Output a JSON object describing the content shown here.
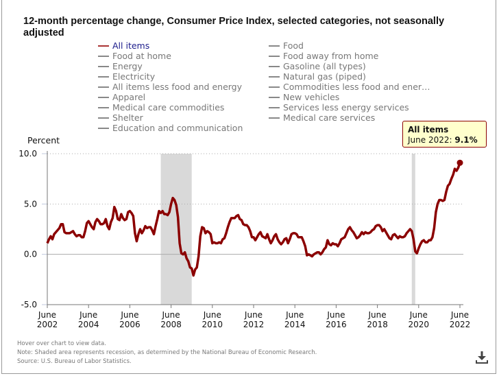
{
  "title": "12-month percentage change, Consumer Price Index, selected categories, not seasonally adjusted",
  "legend": [
    {
      "label": "All items",
      "active": true
    },
    {
      "label": "Food"
    },
    {
      "label": "Food at home"
    },
    {
      "label": "Food away from home"
    },
    {
      "label": "Energy"
    },
    {
      "label": "Gasoline (all types)"
    },
    {
      "label": "Electricity"
    },
    {
      "label": "Natural gas (piped)"
    },
    {
      "label": "All items less food and energy"
    },
    {
      "label": "Commodities less food and ener…"
    },
    {
      "label": "Apparel"
    },
    {
      "label": "New vehicles"
    },
    {
      "label": "Medical care commodities"
    },
    {
      "label": "Services less energy services"
    },
    {
      "label": "Shelter"
    },
    {
      "label": "Medical care services"
    },
    {
      "label": "Education and communication"
    }
  ],
  "tooltip": {
    "series": "All items",
    "date_label": "June 2022: ",
    "value_label": "9.1%"
  },
  "notes": [
    "Hover over chart to view data.",
    "Note: Shaded area represents recession, as determined by the National Bureau of Economic Research.",
    "Source: U.S. Bureau of Labor Statistics."
  ],
  "download_icon": "download-icon",
  "colors": {
    "series": "#8b0000",
    "recession": "#d9d9d9",
    "tooltip_bg": "#ffffcc"
  },
  "chart_data": {
    "type": "line",
    "ylabel": "Percent",
    "ylim": [
      -5,
      10
    ],
    "yticks": [
      -5,
      0,
      5,
      10
    ],
    "ytick_labels": [
      "-5.0",
      "0.0",
      "5.0",
      "10.0"
    ],
    "xlim": [
      "2002-06",
      "2022-06"
    ],
    "xticks": [
      {
        "month": "June",
        "year": "2002",
        "x": "2002-06"
      },
      {
        "month": "June",
        "year": "2004",
        "x": "2004-06"
      },
      {
        "month": "June",
        "year": "2006",
        "x": "2006-06"
      },
      {
        "month": "June",
        "year": "2008",
        "x": "2008-06"
      },
      {
        "month": "June",
        "year": "2010",
        "x": "2010-06"
      },
      {
        "month": "June",
        "year": "2012",
        "x": "2012-06"
      },
      {
        "month": "June",
        "year": "2014",
        "x": "2014-06"
      },
      {
        "month": "June",
        "year": "2016",
        "x": "2016-06"
      },
      {
        "month": "June",
        "year": "2018",
        "x": "2018-06"
      },
      {
        "month": "June",
        "year": "2020",
        "x": "2020-06"
      },
      {
        "month": "June",
        "year": "2022",
        "x": "2022-06"
      }
    ],
    "grid": "horizontal dotted",
    "recessions": [
      [
        "2007-12",
        "2009-06"
      ],
      [
        "2020-02",
        "2020-04"
      ]
    ],
    "series": [
      {
        "name": "All items",
        "points": [
          [
            "2002-06",
            1.1
          ],
          [
            "2002-07",
            1.5
          ],
          [
            "2002-08",
            1.8
          ],
          [
            "2002-09",
            1.5
          ],
          [
            "2002-10",
            2.0
          ],
          [
            "2002-11",
            2.2
          ],
          [
            "2002-12",
            2.4
          ],
          [
            "2003-01",
            2.6
          ],
          [
            "2003-02",
            3.0
          ],
          [
            "2003-03",
            3.0
          ],
          [
            "2003-04",
            2.2
          ],
          [
            "2003-05",
            2.1
          ],
          [
            "2003-06",
            2.1
          ],
          [
            "2003-07",
            2.1
          ],
          [
            "2003-08",
            2.2
          ],
          [
            "2003-09",
            2.3
          ],
          [
            "2003-10",
            2.0
          ],
          [
            "2003-11",
            1.8
          ],
          [
            "2003-12",
            1.9
          ],
          [
            "2004-01",
            1.9
          ],
          [
            "2004-02",
            1.7
          ],
          [
            "2004-03",
            1.7
          ],
          [
            "2004-04",
            2.3
          ],
          [
            "2004-05",
            3.1
          ],
          [
            "2004-06",
            3.3
          ],
          [
            "2004-07",
            3.0
          ],
          [
            "2004-08",
            2.7
          ],
          [
            "2004-09",
            2.5
          ],
          [
            "2004-10",
            3.2
          ],
          [
            "2004-11",
            3.5
          ],
          [
            "2004-12",
            3.3
          ],
          [
            "2005-01",
            3.0
          ],
          [
            "2005-02",
            3.0
          ],
          [
            "2005-03",
            3.1
          ],
          [
            "2005-04",
            3.5
          ],
          [
            "2005-05",
            2.8
          ],
          [
            "2005-06",
            2.5
          ],
          [
            "2005-07",
            3.2
          ],
          [
            "2005-08",
            3.6
          ],
          [
            "2005-09",
            4.7
          ],
          [
            "2005-10",
            4.3
          ],
          [
            "2005-11",
            3.5
          ],
          [
            "2005-12",
            3.4
          ],
          [
            "2006-01",
            4.0
          ],
          [
            "2006-02",
            3.6
          ],
          [
            "2006-03",
            3.4
          ],
          [
            "2006-04",
            3.5
          ],
          [
            "2006-05",
            4.2
          ],
          [
            "2006-06",
            4.3
          ],
          [
            "2006-07",
            4.1
          ],
          [
            "2006-08",
            3.8
          ],
          [
            "2006-09",
            2.1
          ],
          [
            "2006-10",
            1.3
          ],
          [
            "2006-11",
            2.0
          ],
          [
            "2006-12",
            2.5
          ],
          [
            "2007-01",
            2.1
          ],
          [
            "2007-02",
            2.4
          ],
          [
            "2007-03",
            2.8
          ],
          [
            "2007-04",
            2.6
          ],
          [
            "2007-05",
            2.7
          ],
          [
            "2007-06",
            2.7
          ],
          [
            "2007-07",
            2.4
          ],
          [
            "2007-08",
            2.0
          ],
          [
            "2007-09",
            2.8
          ],
          [
            "2007-10",
            3.5
          ],
          [
            "2007-11",
            4.3
          ],
          [
            "2007-12",
            4.1
          ],
          [
            "2008-01",
            4.3
          ],
          [
            "2008-02",
            4.0
          ],
          [
            "2008-03",
            4.0
          ],
          [
            "2008-04",
            3.9
          ],
          [
            "2008-05",
            4.2
          ],
          [
            "2008-06",
            5.0
          ],
          [
            "2008-07",
            5.6
          ],
          [
            "2008-08",
            5.4
          ],
          [
            "2008-09",
            4.9
          ],
          [
            "2008-10",
            3.7
          ],
          [
            "2008-11",
            1.1
          ],
          [
            "2008-12",
            0.1
          ],
          [
            "2009-01",
            0.0
          ],
          [
            "2009-02",
            0.2
          ],
          [
            "2009-03",
            -0.4
          ],
          [
            "2009-04",
            -0.7
          ],
          [
            "2009-05",
            -1.3
          ],
          [
            "2009-06",
            -1.4
          ],
          [
            "2009-07",
            -2.1
          ],
          [
            "2009-08",
            -1.5
          ],
          [
            "2009-09",
            -1.3
          ],
          [
            "2009-10",
            -0.2
          ],
          [
            "2009-11",
            1.8
          ],
          [
            "2009-12",
            2.7
          ],
          [
            "2010-01",
            2.6
          ],
          [
            "2010-02",
            2.1
          ],
          [
            "2010-03",
            2.3
          ],
          [
            "2010-04",
            2.2
          ],
          [
            "2010-05",
            2.0
          ],
          [
            "2010-06",
            1.1
          ],
          [
            "2010-07",
            1.2
          ],
          [
            "2010-08",
            1.1
          ],
          [
            "2010-09",
            1.1
          ],
          [
            "2010-10",
            1.2
          ],
          [
            "2010-11",
            1.1
          ],
          [
            "2010-12",
            1.5
          ],
          [
            "2011-01",
            1.6
          ],
          [
            "2011-02",
            2.1
          ],
          [
            "2011-03",
            2.7
          ],
          [
            "2011-04",
            3.2
          ],
          [
            "2011-05",
            3.6
          ],
          [
            "2011-06",
            3.6
          ],
          [
            "2011-07",
            3.6
          ],
          [
            "2011-08",
            3.8
          ],
          [
            "2011-09",
            3.9
          ],
          [
            "2011-10",
            3.5
          ],
          [
            "2011-11",
            3.4
          ],
          [
            "2011-12",
            3.0
          ],
          [
            "2012-01",
            2.9
          ],
          [
            "2012-02",
            2.9
          ],
          [
            "2012-03",
            2.7
          ],
          [
            "2012-04",
            2.3
          ],
          [
            "2012-05",
            1.7
          ],
          [
            "2012-06",
            1.7
          ],
          [
            "2012-07",
            1.4
          ],
          [
            "2012-08",
            1.7
          ],
          [
            "2012-09",
            2.0
          ],
          [
            "2012-10",
            2.2
          ],
          [
            "2012-11",
            1.8
          ],
          [
            "2012-12",
            1.7
          ],
          [
            "2013-01",
            1.6
          ],
          [
            "2013-02",
            2.0
          ],
          [
            "2013-03",
            1.5
          ],
          [
            "2013-04",
            1.1
          ],
          [
            "2013-05",
            1.4
          ],
          [
            "2013-06",
            1.8
          ],
          [
            "2013-07",
            2.0
          ],
          [
            "2013-08",
            1.5
          ],
          [
            "2013-09",
            1.2
          ],
          [
            "2013-10",
            1.0
          ],
          [
            "2013-11",
            1.2
          ],
          [
            "2013-12",
            1.5
          ],
          [
            "2014-01",
            1.6
          ],
          [
            "2014-02",
            1.1
          ],
          [
            "2014-03",
            1.5
          ],
          [
            "2014-04",
            2.0
          ],
          [
            "2014-05",
            2.1
          ],
          [
            "2014-06",
            2.1
          ],
          [
            "2014-07",
            2.0
          ],
          [
            "2014-08",
            1.7
          ],
          [
            "2014-09",
            1.7
          ],
          [
            "2014-10",
            1.7
          ],
          [
            "2014-11",
            1.3
          ],
          [
            "2014-12",
            0.8
          ],
          [
            "2015-01",
            -0.1
          ],
          [
            "2015-02",
            0.0
          ],
          [
            "2015-03",
            -0.1
          ],
          [
            "2015-04",
            -0.2
          ],
          [
            "2015-05",
            0.0
          ],
          [
            "2015-06",
            0.1
          ],
          [
            "2015-07",
            0.2
          ],
          [
            "2015-08",
            0.2
          ],
          [
            "2015-09",
            0.0
          ],
          [
            "2015-10",
            0.2
          ],
          [
            "2015-11",
            0.5
          ],
          [
            "2015-12",
            0.7
          ],
          [
            "2016-01",
            1.4
          ],
          [
            "2016-02",
            1.0
          ],
          [
            "2016-03",
            0.9
          ],
          [
            "2016-04",
            1.1
          ],
          [
            "2016-05",
            1.0
          ],
          [
            "2016-06",
            1.0
          ],
          [
            "2016-07",
            0.8
          ],
          [
            "2016-08",
            1.1
          ],
          [
            "2016-09",
            1.5
          ],
          [
            "2016-10",
            1.6
          ],
          [
            "2016-11",
            1.7
          ],
          [
            "2016-12",
            2.1
          ],
          [
            "2017-01",
            2.5
          ],
          [
            "2017-02",
            2.7
          ],
          [
            "2017-03",
            2.4
          ],
          [
            "2017-04",
            2.2
          ],
          [
            "2017-05",
            1.9
          ],
          [
            "2017-06",
            1.6
          ],
          [
            "2017-07",
            1.7
          ],
          [
            "2017-08",
            1.9
          ],
          [
            "2017-09",
            2.2
          ],
          [
            "2017-10",
            2.0
          ],
          [
            "2017-11",
            2.2
          ],
          [
            "2017-12",
            2.1
          ],
          [
            "2018-01",
            2.1
          ],
          [
            "2018-02",
            2.2
          ],
          [
            "2018-03",
            2.4
          ],
          [
            "2018-04",
            2.5
          ],
          [
            "2018-05",
            2.8
          ],
          [
            "2018-06",
            2.9
          ],
          [
            "2018-07",
            2.9
          ],
          [
            "2018-08",
            2.7
          ],
          [
            "2018-09",
            2.3
          ],
          [
            "2018-10",
            2.5
          ],
          [
            "2018-11",
            2.2
          ],
          [
            "2018-12",
            1.9
          ],
          [
            "2019-01",
            1.6
          ],
          [
            "2019-02",
            1.5
          ],
          [
            "2019-03",
            1.9
          ],
          [
            "2019-04",
            2.0
          ],
          [
            "2019-05",
            1.8
          ],
          [
            "2019-06",
            1.6
          ],
          [
            "2019-07",
            1.8
          ],
          [
            "2019-08",
            1.7
          ],
          [
            "2019-09",
            1.7
          ],
          [
            "2019-10",
            1.8
          ],
          [
            "2019-11",
            2.1
          ],
          [
            "2019-12",
            2.3
          ],
          [
            "2020-01",
            2.5
          ],
          [
            "2020-02",
            2.3
          ],
          [
            "2020-03",
            1.5
          ],
          [
            "2020-04",
            0.3
          ],
          [
            "2020-05",
            0.1
          ],
          [
            "2020-06",
            0.6
          ],
          [
            "2020-07",
            1.0
          ],
          [
            "2020-08",
            1.3
          ],
          [
            "2020-09",
            1.4
          ],
          [
            "2020-10",
            1.2
          ],
          [
            "2020-11",
            1.2
          ],
          [
            "2020-12",
            1.4
          ],
          [
            "2021-01",
            1.4
          ],
          [
            "2021-02",
            1.7
          ],
          [
            "2021-03",
            2.6
          ],
          [
            "2021-04",
            4.2
          ],
          [
            "2021-05",
            5.0
          ],
          [
            "2021-06",
            5.4
          ],
          [
            "2021-07",
            5.4
          ],
          [
            "2021-08",
            5.3
          ],
          [
            "2021-09",
            5.4
          ],
          [
            "2021-10",
            6.2
          ],
          [
            "2021-11",
            6.8
          ],
          [
            "2021-12",
            7.0
          ],
          [
            "2022-01",
            7.5
          ],
          [
            "2022-02",
            7.9
          ],
          [
            "2022-03",
            8.5
          ],
          [
            "2022-04",
            8.3
          ],
          [
            "2022-05",
            8.6
          ],
          [
            "2022-06",
            9.1
          ]
        ]
      }
    ]
  }
}
